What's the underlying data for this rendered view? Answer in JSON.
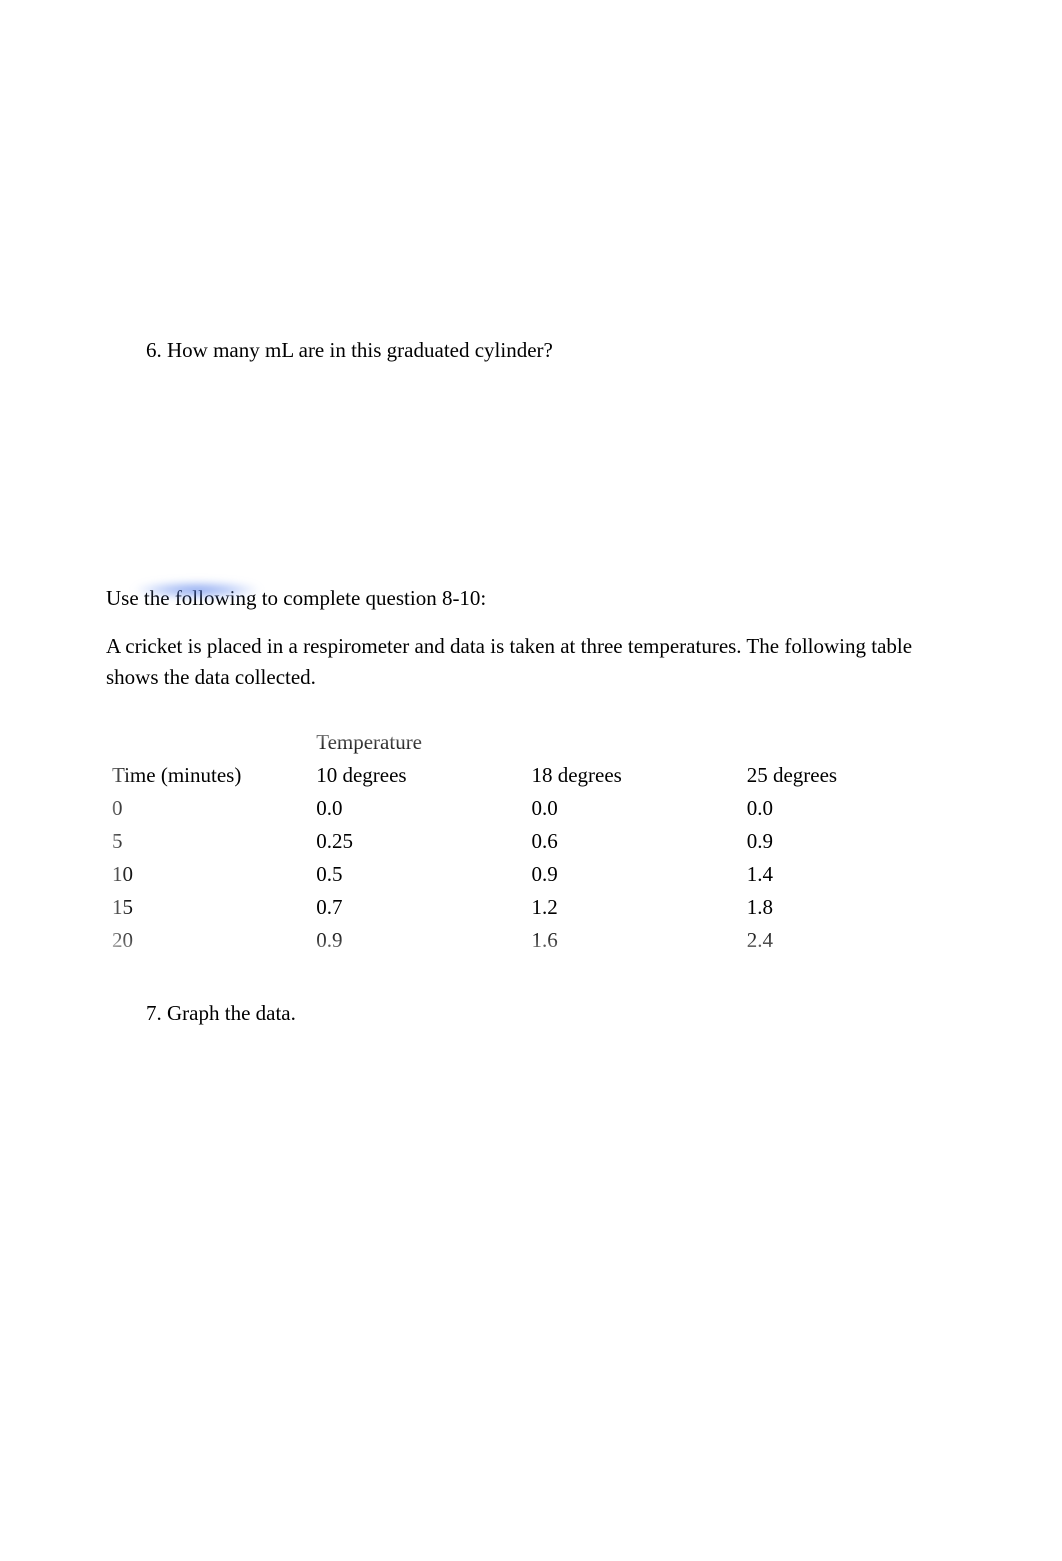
{
  "question6": {
    "number": "6.",
    "text": "How many mL are in this graduated cylinder?"
  },
  "intro": "Use the following to complete question 8-10:",
  "context": "A cricket is placed in a respirometer and data is taken at three temperatures. The following table shows the data collected.",
  "table": {
    "header_group": "Temperature",
    "columns": [
      "Time (minutes)",
      "10 degrees",
      "18 degrees",
      "25 degrees"
    ],
    "rows": [
      [
        "0",
        "0.0",
        "0.0",
        "0.0"
      ],
      [
        "5",
        "0.25",
        "0.6",
        "0.9"
      ],
      [
        "10",
        "0.5",
        "0.9",
        "1.4"
      ],
      [
        "15",
        "0.7",
        "1.2",
        "1.8"
      ],
      [
        "20",
        "0.9",
        "1.6",
        "2.4"
      ]
    ],
    "font_size_pt": 16,
    "text_color": "#000000",
    "background_color": "#ffffff"
  },
  "question7": {
    "number": "7.",
    "text": "Graph the data."
  },
  "colors": {
    "page_background": "#ffffff",
    "text": "#000000",
    "smudge": "#5a7de0"
  }
}
